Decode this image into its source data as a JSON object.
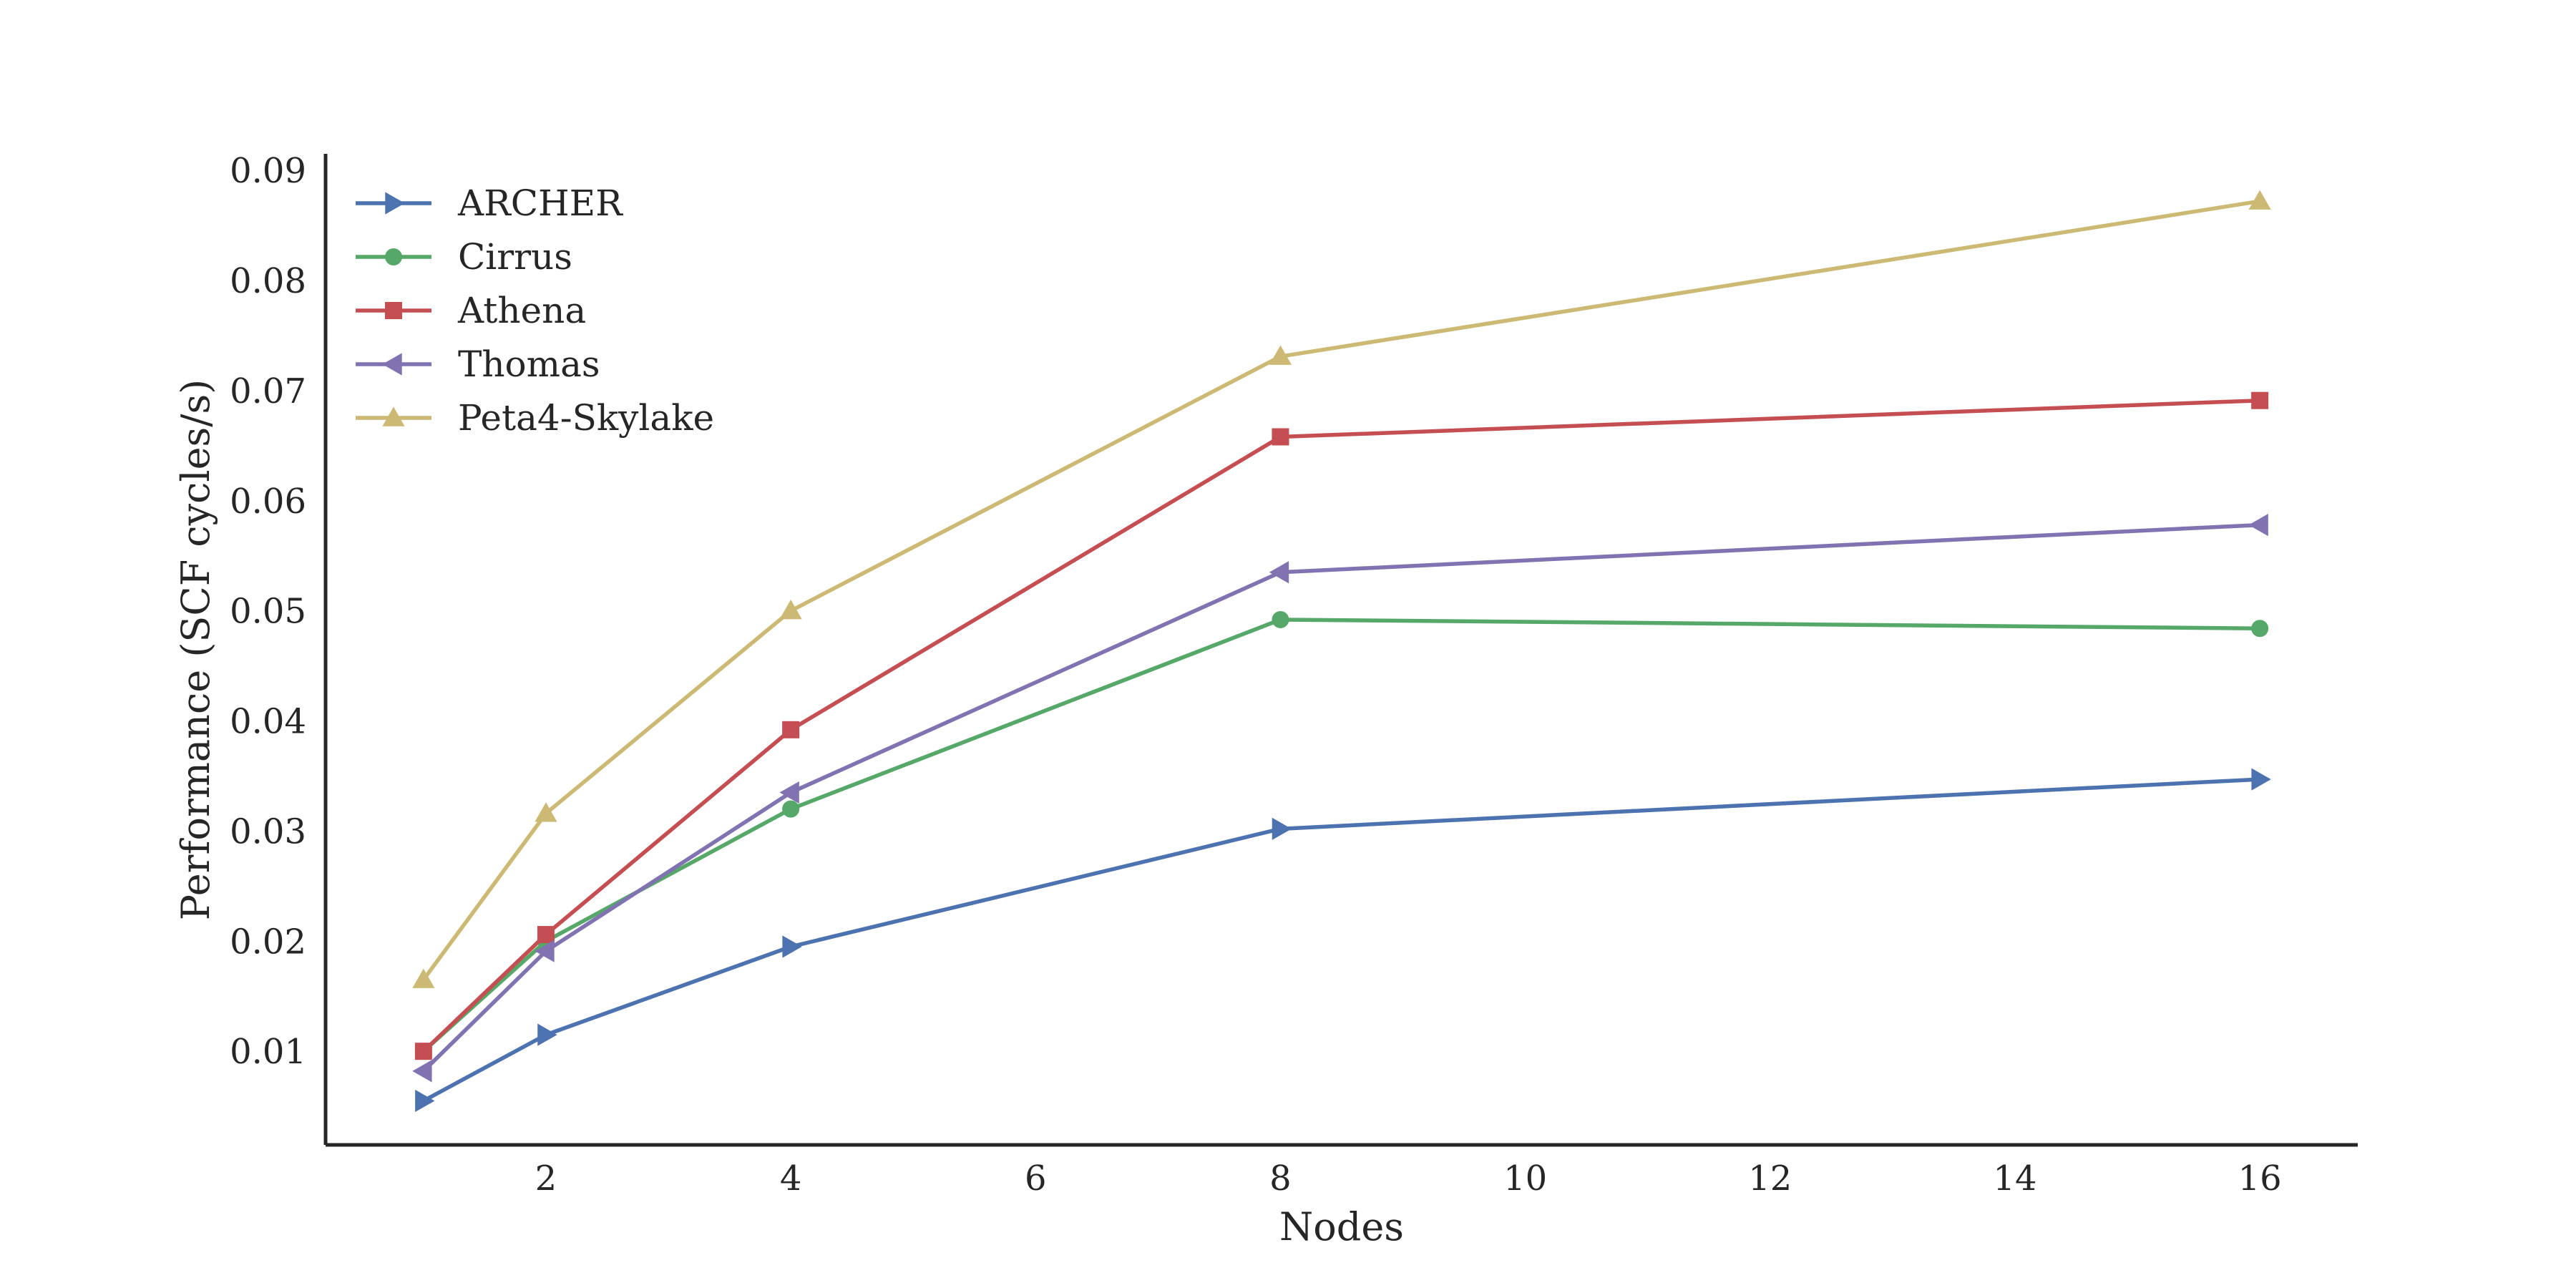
{
  "chart_data": {
    "type": "line",
    "title": "",
    "xlabel": "Nodes",
    "ylabel": "Performance (SCF cycles/s)",
    "xlim": [
      0.2,
      16.8
    ],
    "ylim": [
      0.0015,
      0.0915
    ],
    "x_ticks": [
      2,
      4,
      6,
      8,
      10,
      12,
      14,
      16
    ],
    "x_tick_labels": [
      "2",
      "4",
      "6",
      "8",
      "10",
      "12",
      "14",
      "16"
    ],
    "y_ticks": [
      0.01,
      0.02,
      0.03,
      0.04,
      0.05,
      0.06,
      0.07,
      0.08,
      0.09
    ],
    "y_tick_labels": [
      "0.01",
      "0.02",
      "0.03",
      "0.04",
      "0.05",
      "0.06",
      "0.07",
      "0.08",
      "0.09"
    ],
    "grid": false,
    "legend_position": "top-left",
    "x": [
      1,
      2,
      4,
      8,
      16
    ],
    "series": [
      {
        "name": "ARCHER",
        "color": "#4c72b0",
        "marker": "triangle-right",
        "values": [
          0.0055,
          0.0115,
          0.0195,
          0.0302,
          0.0347
        ]
      },
      {
        "name": "Cirrus",
        "color": "#55a868",
        "marker": "circle",
        "values": [
          0.01,
          0.02,
          0.032,
          0.0492,
          0.0484
        ]
      },
      {
        "name": "Athena",
        "color": "#c44e52",
        "marker": "square",
        "values": [
          0.01,
          0.0206,
          0.0392,
          0.0658,
          0.0691
        ]
      },
      {
        "name": "Thomas",
        "color": "#8172b2",
        "marker": "triangle-left",
        "values": [
          0.0082,
          0.0191,
          0.0335,
          0.0535,
          0.0578
        ]
      },
      {
        "name": "Peta4-Skylake",
        "color": "#ccb974",
        "marker": "triangle-up",
        "values": [
          0.0165,
          0.0316,
          0.05,
          0.0731,
          0.0872
        ]
      }
    ]
  }
}
